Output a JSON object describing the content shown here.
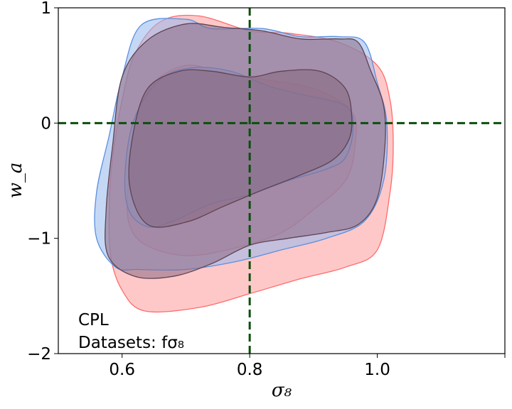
{
  "chart_data": {
    "type": "contour",
    "xlabel": "σ₈",
    "ylabel": "w_a",
    "xlim": [
      0.5,
      1.2
    ],
    "ylim": [
      -2,
      1
    ],
    "xticks": [
      0.6,
      0.8,
      1.0,
      1.2
    ],
    "xtick_labels": [
      "0.6",
      "0.8",
      "1.0",
      ""
    ],
    "yticks": [
      -2,
      -1,
      0,
      1
    ],
    "ytick_labels": [
      "−2",
      "−1",
      "0",
      "1"
    ],
    "fiducial": {
      "x": 0.8,
      "y": 0,
      "color": "#0b4f0b",
      "style": "dashed"
    },
    "annotation": [
      "CPL",
      "Datasets: fσ₈"
    ],
    "grid": false,
    "series": [
      {
        "color": "#ff6b6b",
        "fill": "#ff9a9a",
        "regions": [
          {
            "level": "outer",
            "points": [
              [
                0.635,
                -1.63
              ],
              [
                0.72,
                -1.6
              ],
              [
                0.8,
                -1.48
              ],
              [
                0.88,
                -1.35
              ],
              [
                0.95,
                -1.25
              ],
              [
                1.0,
                -1.1
              ],
              [
                1.02,
                -0.6
              ],
              [
                1.025,
                -0.2
              ],
              [
                1.02,
                0.2
              ],
              [
                1.0,
                0.5
              ],
              [
                0.94,
                0.7
              ],
              [
                0.86,
                0.78
              ],
              [
                0.8,
                0.8
              ],
              [
                0.72,
                0.93
              ],
              [
                0.66,
                0.88
              ],
              [
                0.62,
                0.6
              ],
              [
                0.6,
                0.2
              ],
              [
                0.585,
                -0.3
              ],
              [
                0.58,
                -0.7
              ],
              [
                0.582,
                -1.15
              ],
              [
                0.6,
                -1.45
              ]
            ]
          },
          {
            "level": "inner",
            "points": [
              [
                0.635,
                -1.05
              ],
              [
                0.7,
                -1.15
              ],
              [
                0.78,
                -1.08
              ],
              [
                0.85,
                -0.95
              ],
              [
                0.9,
                -0.75
              ],
              [
                0.95,
                -0.5
              ],
              [
                0.965,
                -0.2
              ],
              [
                0.96,
                0.1
              ],
              [
                0.9,
                0.3
              ],
              [
                0.82,
                0.38
              ],
              [
                0.75,
                0.45
              ],
              [
                0.7,
                0.5
              ],
              [
                0.65,
                0.35
              ],
              [
                0.62,
                0.0
              ],
              [
                0.61,
                -0.5
              ],
              [
                0.61,
                -0.85
              ]
            ]
          }
        ]
      },
      {
        "color": "#5b8fe0",
        "fill": "#93b8ee",
        "regions": [
          {
            "level": "outer",
            "points": [
              [
                0.625,
                -1.27
              ],
              [
                0.7,
                -1.27
              ],
              [
                0.78,
                -1.2
              ],
              [
                0.85,
                -1.1
              ],
              [
                0.92,
                -1.0
              ],
              [
                0.98,
                -0.85
              ],
              [
                1.01,
                -0.5
              ],
              [
                1.015,
                0.0
              ],
              [
                1.0,
                0.35
              ],
              [
                0.98,
                0.7
              ],
              [
                0.94,
                0.75
              ],
              [
                0.88,
                0.75
              ],
              [
                0.82,
                0.82
              ],
              [
                0.74,
                0.82
              ],
              [
                0.7,
                0.9
              ],
              [
                0.63,
                0.85
              ],
              [
                0.6,
                0.4
              ],
              [
                0.58,
                -0.1
              ],
              [
                0.56,
                -0.6
              ],
              [
                0.56,
                -1.0
              ],
              [
                0.59,
                -1.25
              ]
            ]
          },
          {
            "level": "inner",
            "points": [
              [
                0.64,
                -0.9
              ],
              [
                0.68,
                -0.85
              ],
              [
                0.74,
                -0.7
              ],
              [
                0.8,
                -0.62
              ],
              [
                0.86,
                -0.5
              ],
              [
                0.92,
                -0.4
              ],
              [
                0.95,
                -0.3
              ],
              [
                0.962,
                -0.05
              ],
              [
                0.95,
                0.15
              ],
              [
                0.88,
                0.25
              ],
              [
                0.83,
                0.32
              ],
              [
                0.77,
                0.45
              ],
              [
                0.71,
                0.48
              ],
              [
                0.66,
                0.38
              ],
              [
                0.62,
                0.05
              ],
              [
                0.605,
                -0.4
              ],
              [
                0.61,
                -0.75
              ]
            ]
          }
        ]
      },
      {
        "color": "#5e4352",
        "fill": "#8a6a84",
        "regions": [
          {
            "level": "outer",
            "points": [
              [
                0.62,
                -1.33
              ],
              [
                0.68,
                -1.33
              ],
              [
                0.74,
                -1.22
              ],
              [
                0.8,
                -1.06
              ],
              [
                0.86,
                -1.0
              ],
              [
                0.92,
                -0.95
              ],
              [
                0.97,
                -0.88
              ],
              [
                1.0,
                -0.65
              ],
              [
                1.012,
                -0.2
              ],
              [
                1.01,
                0.15
              ],
              [
                0.99,
                0.45
              ],
              [
                0.97,
                0.7
              ],
              [
                0.94,
                0.73
              ],
              [
                0.88,
                0.73
              ],
              [
                0.82,
                0.8
              ],
              [
                0.76,
                0.83
              ],
              [
                0.7,
                0.86
              ],
              [
                0.64,
                0.72
              ],
              [
                0.6,
                0.4
              ],
              [
                0.585,
                -0.2
              ],
              [
                0.575,
                -0.75
              ],
              [
                0.578,
                -1.15
              ]
            ]
          },
          {
            "level": "inner",
            "points": [
              [
                0.64,
                -0.88
              ],
              [
                0.7,
                -0.86
              ],
              [
                0.76,
                -0.72
              ],
              [
                0.82,
                -0.58
              ],
              [
                0.88,
                -0.45
              ],
              [
                0.93,
                -0.32
              ],
              [
                0.955,
                -0.15
              ],
              [
                0.96,
                0.05
              ],
              [
                0.95,
                0.3
              ],
              [
                0.91,
                0.45
              ],
              [
                0.85,
                0.45
              ],
              [
                0.8,
                0.4
              ],
              [
                0.74,
                0.45
              ],
              [
                0.69,
                0.45
              ],
              [
                0.64,
                0.3
              ],
              [
                0.617,
                -0.1
              ],
              [
                0.612,
                -0.55
              ]
            ]
          }
        ]
      }
    ]
  }
}
